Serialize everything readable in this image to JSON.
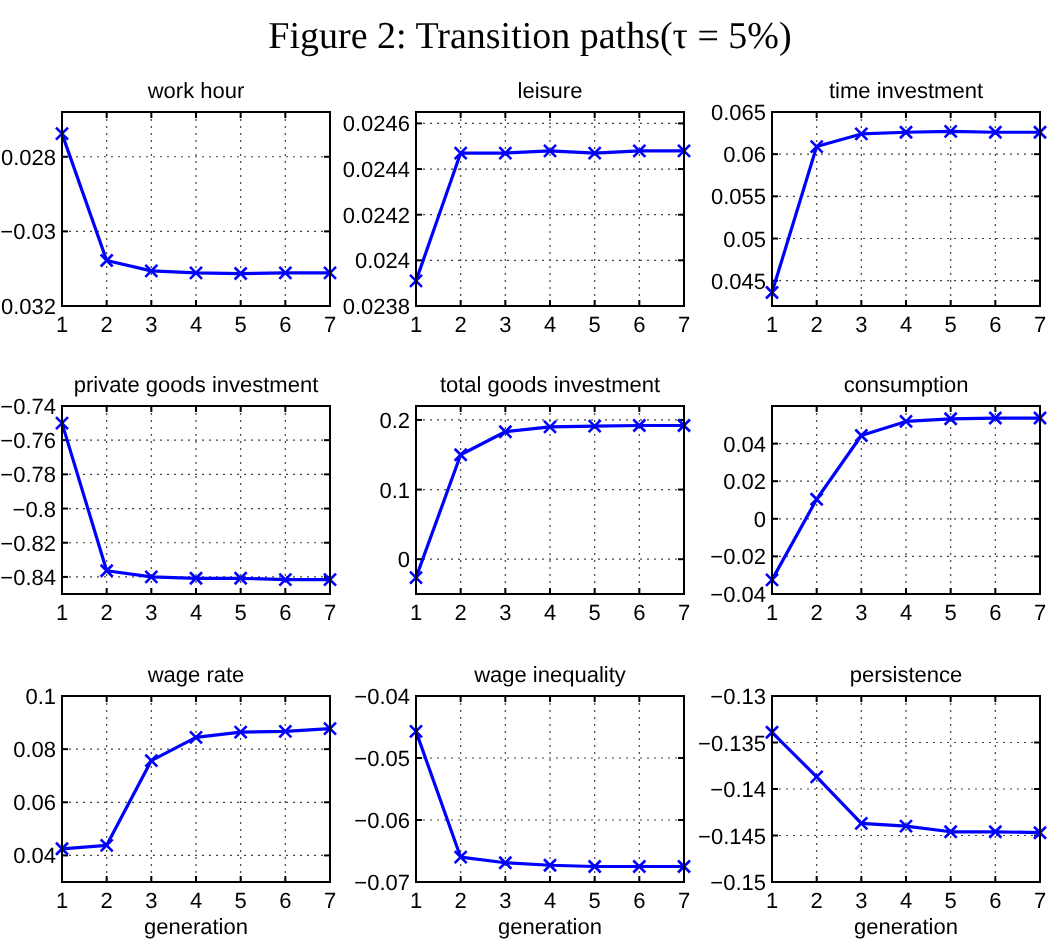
{
  "chart_data": [
    {
      "type": "other",
      "title": "Figure 2: Transition paths(τ = 5%)"
    },
    {
      "type": "line",
      "title": "work hour",
      "x": [
        1,
        2,
        3,
        4,
        5,
        6,
        7
      ],
      "xlim": [
        1,
        7
      ],
      "xticks": [
        1,
        2,
        3,
        4,
        5,
        6,
        7
      ],
      "ylim": [
        -0.032,
        -0.0268
      ],
      "yticks": [
        {
          "value": -0.032,
          "label": "0.032"
        },
        {
          "value": -0.03,
          "label": "−0.03"
        },
        {
          "value": -0.028,
          "label": "0.028"
        }
      ],
      "grid": true,
      "marker": "cross",
      "line_style": "solid",
      "series": [
        {
          "color": "#0000ff",
          "values": [
            -0.02738,
            -0.03078,
            -0.03106,
            -0.03111,
            -0.03113,
            -0.03111,
            -0.03111
          ]
        }
      ]
    },
    {
      "type": "line",
      "title": "leisure",
      "x": [
        1,
        2,
        3,
        4,
        5,
        6,
        7
      ],
      "xlim": [
        1,
        7
      ],
      "xticks": [
        1,
        2,
        3,
        4,
        5,
        6,
        7
      ],
      "ylim": [
        0.0238,
        0.02465
      ],
      "yticks": [
        0.0238,
        0.024,
        0.0242,
        0.0244,
        0.0246
      ],
      "grid": true,
      "marker": "cross",
      "line_style": "solid",
      "series": [
        {
          "color": "#0000ff",
          "values": [
            0.02391,
            0.02447,
            0.02447,
            0.02448,
            0.02447,
            0.02448,
            0.02448
          ]
        }
      ]
    },
    {
      "type": "line",
      "title": "time investment",
      "x": [
        1,
        2,
        3,
        4,
        5,
        6,
        7
      ],
      "xlim": [
        1,
        7
      ],
      "xticks": [
        1,
        2,
        3,
        4,
        5,
        6,
        7
      ],
      "ylim": [
        0.042,
        0.065
      ],
      "yticks": [
        0.045,
        0.05,
        0.055,
        0.06,
        0.065
      ],
      "grid": true,
      "marker": "cross",
      "line_style": "solid",
      "series": [
        {
          "color": "#0000ff",
          "values": [
            0.0436,
            0.0609,
            0.0624,
            0.0626,
            0.0627,
            0.0626,
            0.0626
          ]
        }
      ]
    },
    {
      "type": "line",
      "title": "private goods investment",
      "x": [
        1,
        2,
        3,
        4,
        5,
        6,
        7
      ],
      "xlim": [
        1,
        7
      ],
      "xticks": [
        1,
        2,
        3,
        4,
        5,
        6,
        7
      ],
      "ylim": [
        -0.85,
        -0.74
      ],
      "yticks": [
        {
          "value": -0.84,
          "label": "−0.84"
        },
        {
          "value": -0.82,
          "label": "−0.82"
        },
        {
          "value": -0.8,
          "label": "−0.8"
        },
        {
          "value": -0.78,
          "label": "−0.78"
        },
        {
          "value": -0.76,
          "label": "−0.76"
        },
        {
          "value": -0.74,
          "label": "−0.74"
        }
      ],
      "grid": true,
      "marker": "cross",
      "line_style": "solid",
      "series": [
        {
          "color": "#0000ff",
          "values": [
            -0.75,
            -0.8364,
            -0.84,
            -0.8408,
            -0.8408,
            -0.8416,
            -0.8416
          ]
        }
      ]
    },
    {
      "type": "line",
      "title": "total goods investment",
      "x": [
        1,
        2,
        3,
        4,
        5,
        6,
        7
      ],
      "xlim": [
        1,
        7
      ],
      "xticks": [
        1,
        2,
        3,
        4,
        5,
        6,
        7
      ],
      "ylim": [
        -0.05,
        0.22
      ],
      "yticks": [
        0,
        0.1,
        0.2
      ],
      "grid": true,
      "marker": "cross",
      "line_style": "solid",
      "series": [
        {
          "color": "#0000ff",
          "values": [
            -0.0265,
            0.15,
            0.183,
            0.19,
            0.191,
            0.192,
            0.192
          ]
        }
      ]
    },
    {
      "type": "line",
      "title": "consumption",
      "x": [
        1,
        2,
        3,
        4,
        5,
        6,
        7
      ],
      "xlim": [
        1,
        7
      ],
      "xticks": [
        1,
        2,
        3,
        4,
        5,
        6,
        7
      ],
      "ylim": [
        -0.04,
        0.06
      ],
      "yticks": [
        {
          "value": -0.04,
          "label": "−0.04"
        },
        {
          "value": -0.02,
          "label": "−0.02"
        },
        0,
        0.02,
        0.04
      ],
      "grid": true,
      "marker": "cross",
      "line_style": "solid",
      "series": [
        {
          "color": "#0000ff",
          "values": [
            -0.0325,
            0.0104,
            0.0443,
            0.0518,
            0.0532,
            0.0536,
            0.0536
          ]
        }
      ]
    },
    {
      "type": "line",
      "title": "wage rate",
      "xlabel": "generation",
      "x": [
        1,
        2,
        3,
        4,
        5,
        6,
        7
      ],
      "xlim": [
        1,
        7
      ],
      "xticks": [
        1,
        2,
        3,
        4,
        5,
        6,
        7
      ],
      "ylim": [
        0.03,
        0.1
      ],
      "yticks": [
        0.04,
        0.06,
        0.08,
        0.1
      ],
      "grid": true,
      "marker": "cross",
      "line_style": "solid",
      "series": [
        {
          "color": "#0000ff",
          "values": [
            0.0425,
            0.0438,
            0.0757,
            0.0844,
            0.0864,
            0.0867,
            0.0877
          ]
        }
      ]
    },
    {
      "type": "line",
      "title": "wage inequality",
      "xlabel": "generation",
      "x": [
        1,
        2,
        3,
        4,
        5,
        6,
        7
      ],
      "xlim": [
        1,
        7
      ],
      "xticks": [
        1,
        2,
        3,
        4,
        5,
        6,
        7
      ],
      "ylim": [
        -0.07,
        -0.04
      ],
      "yticks": [
        {
          "value": -0.07,
          "label": "−0.07"
        },
        {
          "value": -0.06,
          "label": "−0.06"
        },
        {
          "value": -0.05,
          "label": "−0.05"
        },
        {
          "value": -0.04,
          "label": "−0.04"
        }
      ],
      "grid": true,
      "marker": "cross",
      "line_style": "solid",
      "series": [
        {
          "color": "#0000ff",
          "values": [
            -0.0457,
            -0.066,
            -0.0669,
            -0.0673,
            -0.0675,
            -0.0675,
            -0.0675
          ]
        }
      ]
    },
    {
      "type": "line",
      "title": "persistence",
      "xlabel": "generation",
      "x": [
        1,
        2,
        3,
        4,
        5,
        6,
        7
      ],
      "xlim": [
        1,
        7
      ],
      "xticks": [
        1,
        2,
        3,
        4,
        5,
        6,
        7
      ],
      "ylim": [
        -0.15,
        -0.13
      ],
      "yticks": [
        {
          "value": -0.15,
          "label": "−0.15"
        },
        {
          "value": -0.145,
          "label": "−0.145"
        },
        {
          "value": -0.14,
          "label": "−0.14"
        },
        {
          "value": -0.135,
          "label": "−0.135"
        },
        {
          "value": -0.13,
          "label": "−0.13"
        }
      ],
      "grid": true,
      "marker": "cross",
      "line_style": "solid",
      "series": [
        {
          "color": "#0000ff",
          "values": [
            -0.1339,
            -0.1387,
            -0.1437,
            -0.144,
            -0.1446,
            -0.1446,
            -0.1447
          ]
        }
      ]
    }
  ]
}
